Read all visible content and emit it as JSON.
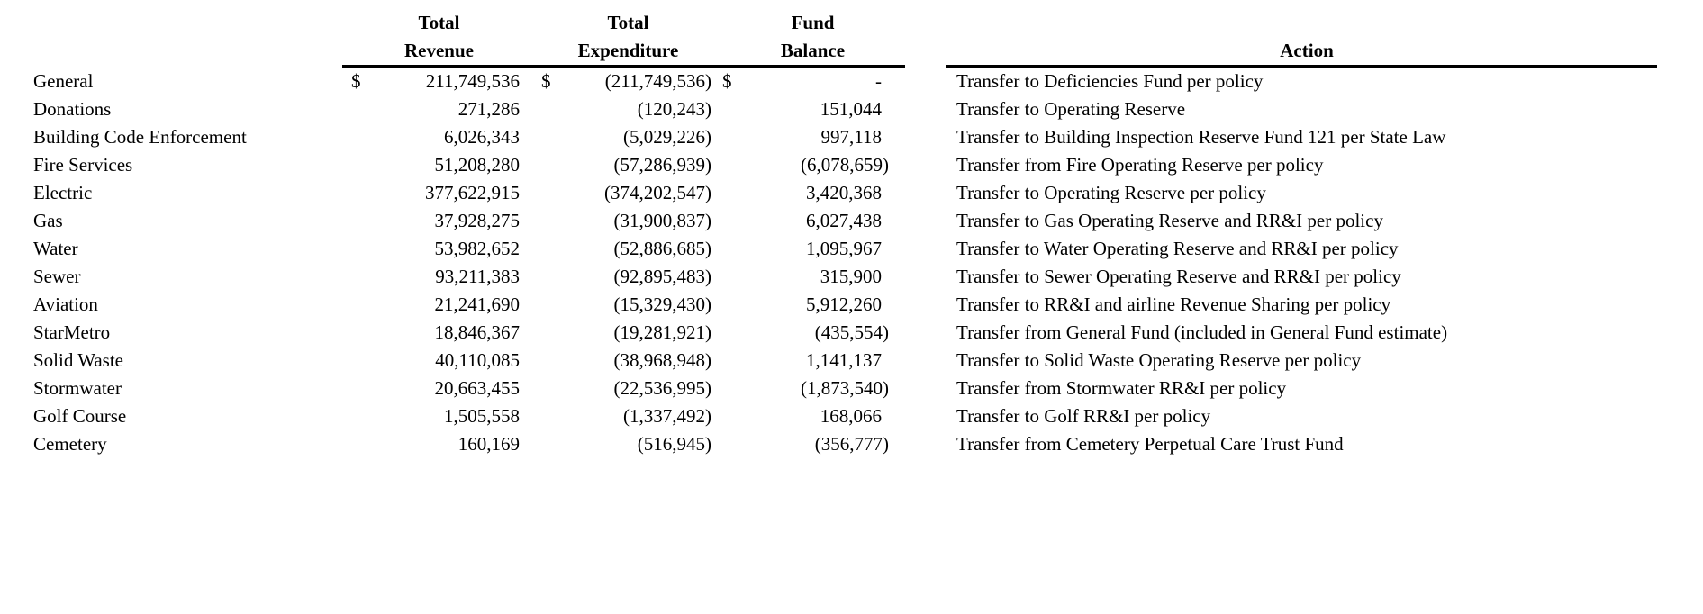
{
  "table": {
    "colors": {
      "text": "#000000",
      "background": "#ffffff",
      "rule": "#000000"
    },
    "headers": {
      "revenue_line1": "Total",
      "revenue_line2": "Revenue",
      "expenditure_line1": "Total",
      "expenditure_line2": "Expenditure",
      "balance_line1": "Fund",
      "balance_line2": "Balance",
      "action": "Action"
    },
    "rows": [
      {
        "name": "General",
        "rev_cur": "$",
        "rev": "211,749,536",
        "exp_cur": "$",
        "exp": "(211,749,536)",
        "bal_cur": "$",
        "bal": "-",
        "action": "Transfer to Deficiencies Fund per policy"
      },
      {
        "name": "Donations",
        "rev": "271,286",
        "exp": "(120,243)",
        "bal": "151,044",
        "action": "Transfer to Operating Reserve"
      },
      {
        "name": "Building Code Enforcement",
        "rev": "6,026,343",
        "exp": "(5,029,226)",
        "bal": "997,118",
        "action": "Transfer to Building Inspection Reserve Fund 121 per State Law"
      },
      {
        "name": "Fire Services",
        "rev": "51,208,280",
        "exp": "(57,286,939)",
        "bal": "(6,078,659)",
        "action": "Transfer from Fire Operating Reserve per policy"
      },
      {
        "name": "Electric",
        "rev": "377,622,915",
        "exp": "(374,202,547)",
        "bal": "3,420,368",
        "action": "Transfer to Operating Reserve per policy"
      },
      {
        "name": "Gas",
        "rev": "37,928,275",
        "exp": "(31,900,837)",
        "bal": "6,027,438",
        "action": "Transfer to Gas Operating Reserve and RR&I per policy"
      },
      {
        "name": "Water",
        "rev": "53,982,652",
        "exp": "(52,886,685)",
        "bal": "1,095,967",
        "action": "Transfer to Water Operating Reserve and RR&I per policy"
      },
      {
        "name": "Sewer",
        "rev": "93,211,383",
        "exp": "(92,895,483)",
        "bal": "315,900",
        "action": "Transfer to Sewer Operating Reserve and RR&I per policy"
      },
      {
        "name": "Aviation",
        "rev": "21,241,690",
        "exp": "(15,329,430)",
        "bal": "5,912,260",
        "action": "Transfer to RR&I and airline Revenue Sharing per policy"
      },
      {
        "name": "StarMetro",
        "rev": "18,846,367",
        "exp": "(19,281,921)",
        "bal": "(435,554)",
        "action": "Transfer from General Fund (included in General Fund estimate)"
      },
      {
        "name": "Solid Waste",
        "rev": "40,110,085",
        "exp": "(38,968,948)",
        "bal": "1,141,137",
        "action": "Transfer to Solid Waste Operating Reserve per policy"
      },
      {
        "name": "Stormwater",
        "rev": "20,663,455",
        "exp": "(22,536,995)",
        "bal": "(1,873,540)",
        "action": "Transfer from Stormwater RR&I per policy"
      },
      {
        "name": "Golf Course",
        "rev": "1,505,558",
        "exp": "(1,337,492)",
        "bal": "168,066",
        "action": "Transfer to Golf RR&I per policy"
      },
      {
        "name": "Cemetery",
        "rev": "160,169",
        "exp": "(516,945)",
        "bal": "(356,777)",
        "action": "Transfer from Cemetery Perpetual Care Trust Fund"
      }
    ]
  }
}
